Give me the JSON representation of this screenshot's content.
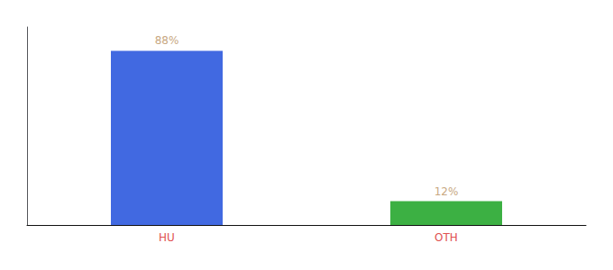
{
  "chart_data": {
    "type": "bar",
    "categories": [
      "HU",
      "OTH"
    ],
    "values": [
      88,
      12
    ],
    "value_labels": [
      "88%",
      "12%"
    ],
    "data_labels": true,
    "colors": [
      "#4169e1",
      "#3cb043"
    ],
    "ylim": [
      0,
      100
    ],
    "grid": false,
    "tick_labels": "x"
  }
}
